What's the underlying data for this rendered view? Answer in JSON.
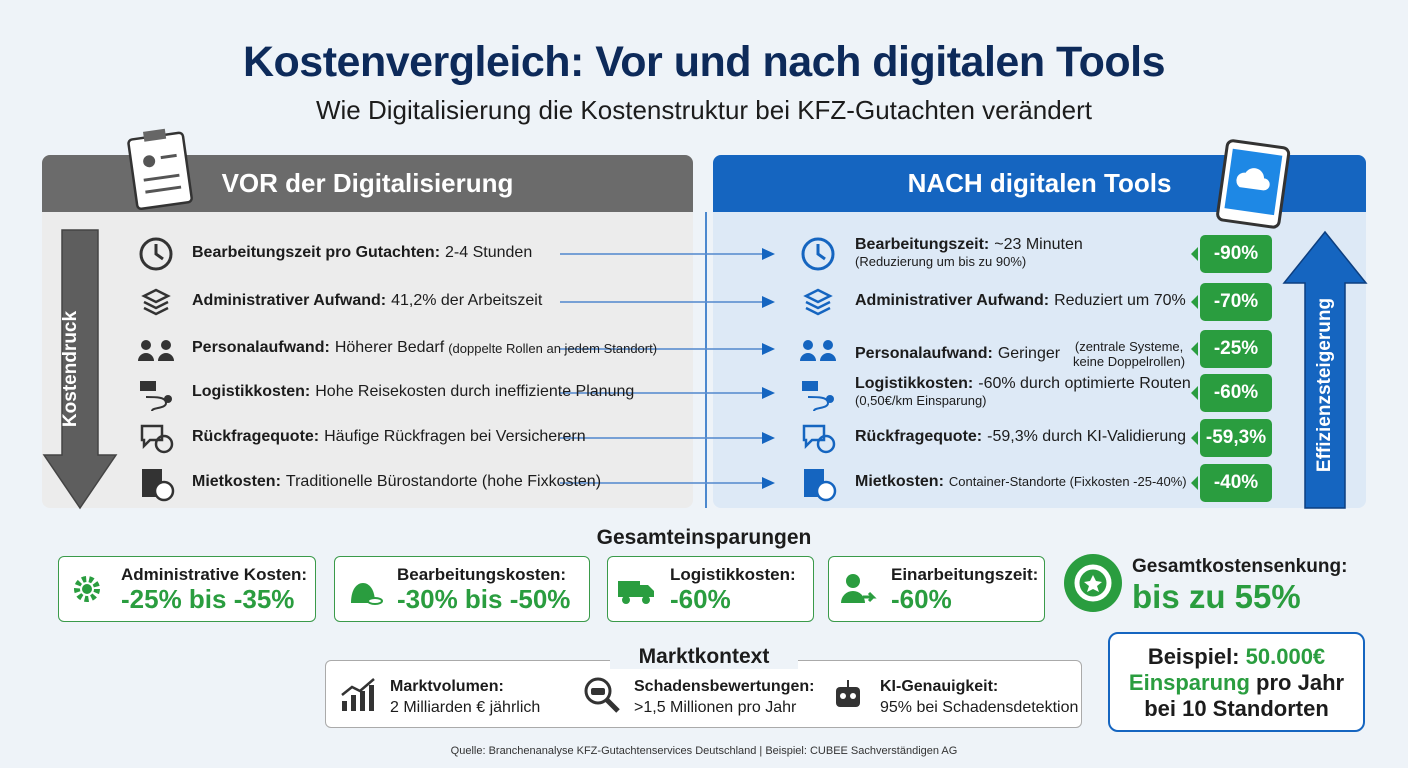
{
  "header": {
    "title": "Kostenvergleich: Vor und nach digitalen Tools",
    "subtitle": "Wie Digitalisierung die Kostenstruktur bei KFZ-Gutachten verändert"
  },
  "before": {
    "title": "VOR der Digitalisierung",
    "arrow_label": "Kostendruck",
    "rows": [
      {
        "label": "Bearbeitungszeit pro Gutachten:",
        "text": "2-4 Stunden"
      },
      {
        "label": "Administrativer Aufwand:",
        "text": "41,2% der Arbeitszeit"
      },
      {
        "label": "Personalaufwand:",
        "text": "Höherer Bedarf",
        "note": "(doppelte Rollen an jedem Standort)"
      },
      {
        "label": "Logistikkosten:",
        "text": "Hohe Reisekosten durch ineffiziente Planung"
      },
      {
        "label": "Rückfragequote:",
        "text": "Häufige Rückfragen bei Versicherern"
      },
      {
        "label": "Mietkosten:",
        "text": "Traditionelle Bürostandorte (hohe Fixkosten)"
      }
    ]
  },
  "after": {
    "title": "NACH digitalen Tools",
    "arrow_label": "Effizienzsteigerung",
    "rows": [
      {
        "label": "Bearbeitungszeit:",
        "text": "~23 Minuten",
        "note": "(Reduzierung um bis zu 90%)",
        "badge": "-90%"
      },
      {
        "label": "Administrativer Aufwand:",
        "text": "Reduziert um 70%",
        "badge": "-70%"
      },
      {
        "label": "Personalaufwand:",
        "text": "Geringer",
        "note": "(zentrale Systeme, keine Doppelrollen)",
        "badge": "-25%"
      },
      {
        "label": "Logistikkosten:",
        "text": "-60% durch optimierte Routen",
        "note": "(0,50€/km Einsparung)",
        "badge": "-60%"
      },
      {
        "label": "Rückfragequote:",
        "text": "-59,3% durch KI-Validierung",
        "badge": "-59,3%"
      },
      {
        "label": "Mietkosten:",
        "text": "Container-Standorte (Fixkosten -25-40%)",
        "badge": "-40%"
      }
    ]
  },
  "savings": {
    "title": "Gesamteinsparungen",
    "items": [
      {
        "label": "Administrative Kosten:",
        "value": "-25% bis -35%"
      },
      {
        "label": "Bearbeitungskosten:",
        "value": "-30% bis -50%"
      },
      {
        "label": "Logistikkosten:",
        "value": "-60%"
      },
      {
        "label": "Einarbeitungszeit:",
        "value": "-60%"
      }
    ],
    "total": {
      "label": "Gesamtkostensenkung:",
      "value": "bis zu 55%"
    },
    "example": {
      "part1": "Beispiel:",
      "part2": "50.000€",
      "part3": "Einsparung",
      "part4": "pro Jahr",
      "part5": "bei 10 Standorten"
    }
  },
  "market": {
    "title": "Marktkontext",
    "items": [
      {
        "label": "Marktvolumen:",
        "text": "2 Milliarden € jährlich"
      },
      {
        "label": "Schadensbewertungen:",
        "text": ">1,5 Millionen pro Jahr"
      },
      {
        "label": "KI-Genauigkeit:",
        "text": "95% bei Schadensdetektion"
      }
    ]
  },
  "source": "Quelle: Branchenanalyse KFZ-Gutachtenservices Deutschland | Beispiel: CUBEE Sachverständigen AG"
}
